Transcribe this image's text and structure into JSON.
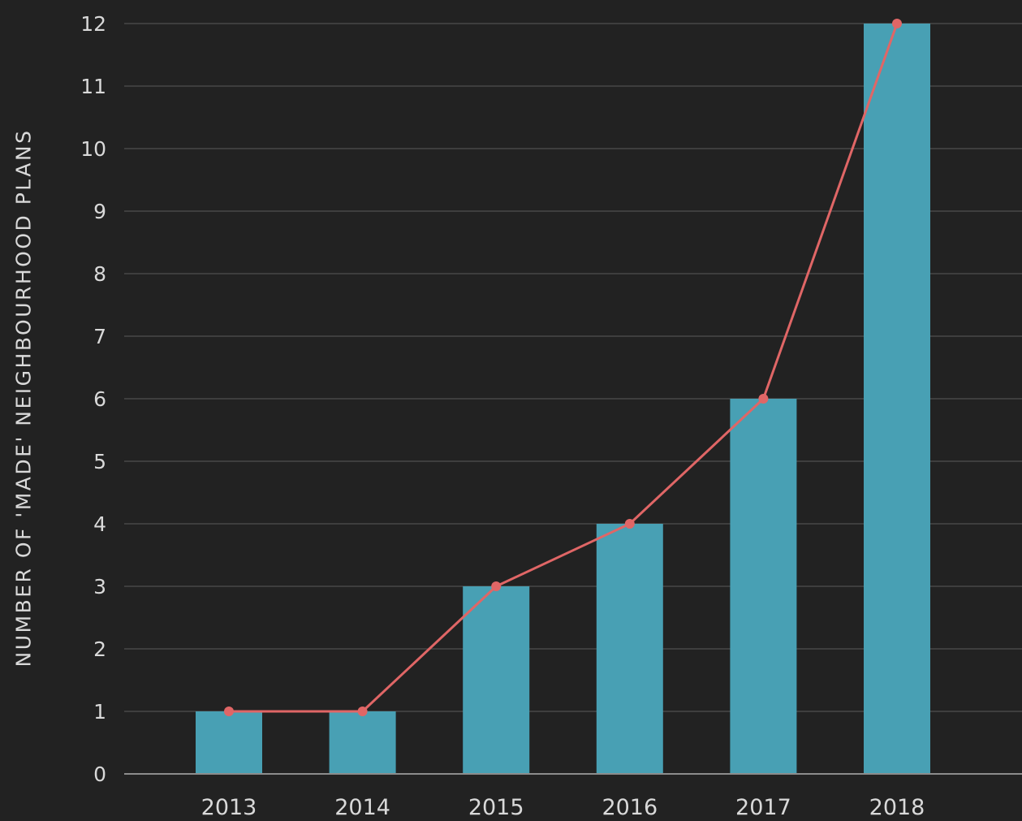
{
  "chart_data": {
    "type": "bar",
    "title": "",
    "xlabel": "",
    "ylabel": "NUMBER OF 'MADE' NEIGHBOURHOOD PLANS",
    "categories": [
      "2013",
      "2014",
      "2015",
      "2016",
      "2017",
      "2018"
    ],
    "values": [
      1,
      1,
      3,
      4,
      6,
      12
    ],
    "overlay_line": {
      "type": "line",
      "values": [
        1,
        1,
        3,
        4,
        6,
        12
      ],
      "color": "#e06666"
    },
    "ylim": [
      0,
      12
    ],
    "yticks": [
      "0",
      "1",
      "2",
      "3",
      "4",
      "5",
      "6",
      "7",
      "8",
      "9",
      "10",
      "11",
      "12"
    ],
    "grid": true,
    "legend": "none"
  },
  "colors": {
    "background": "#222222",
    "bar": "#48a0b4",
    "line": "#e06666",
    "grid": "#474747",
    "axis": "#8c8c8c",
    "text": "#d9d9d9"
  }
}
